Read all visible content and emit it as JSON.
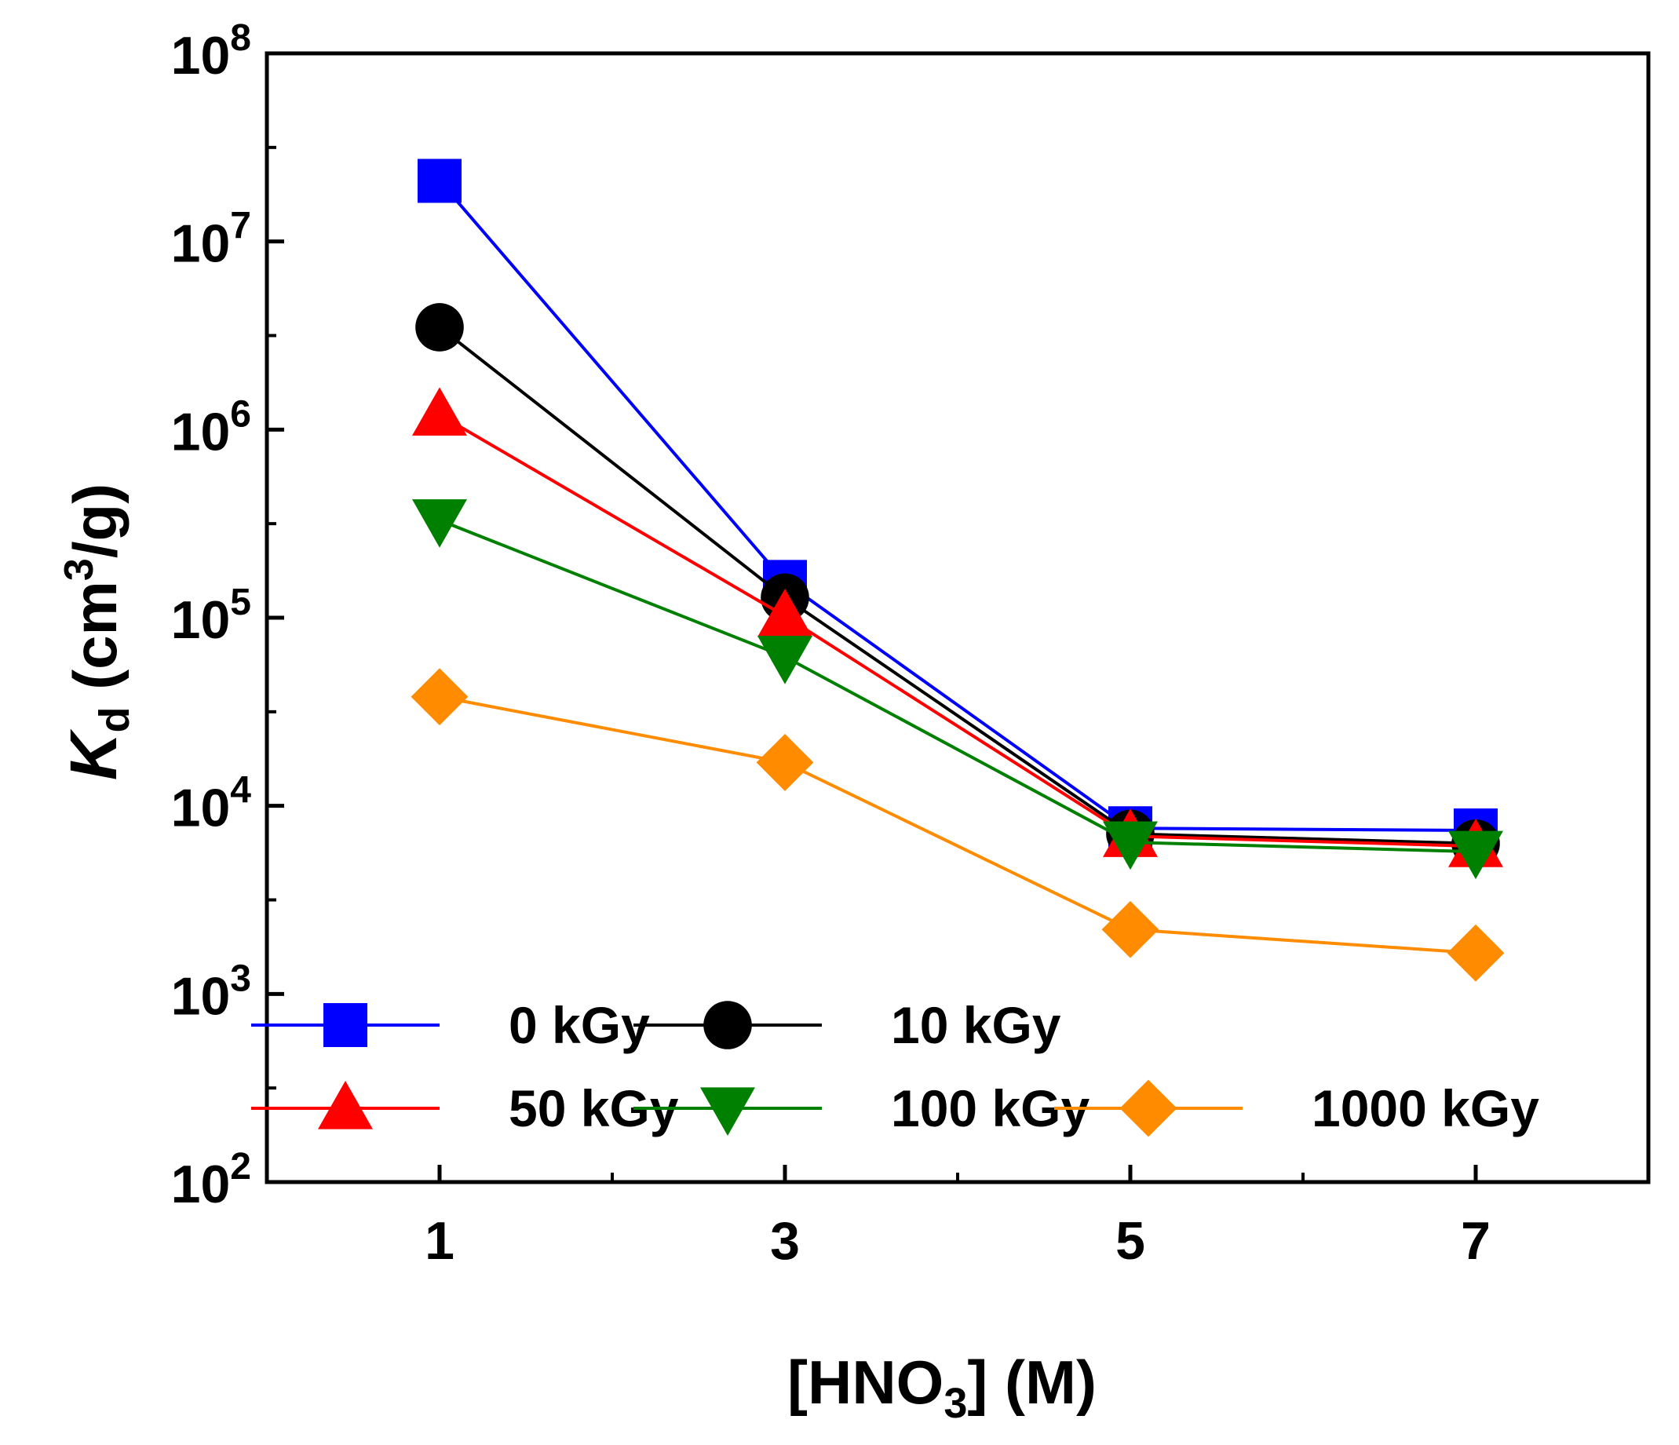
{
  "chart_data": {
    "type": "line",
    "y_scale": "log",
    "xlabel": {
      "main": "[HNO",
      "sub": "3",
      "tail": "] (M)"
    },
    "ylabel": {
      "main": "K",
      "sub": "d",
      "unit_open": " (cm",
      "sup": "3",
      "unit_close": "/g)"
    },
    "xlim": [
      0,
      8
    ],
    "ylim": [
      100,
      100000000
    ],
    "x_ticks": [
      1,
      3,
      5,
      7
    ],
    "x_tick_labels": [
      "1",
      "3",
      "5",
      "7"
    ],
    "y_ticks": [
      {
        "value": 100,
        "base": "10",
        "exp": "2"
      },
      {
        "value": 1000,
        "base": "10",
        "exp": "3"
      },
      {
        "value": 10000,
        "base": "10",
        "exp": "4"
      },
      {
        "value": 100000,
        "base": "10",
        "exp": "5"
      },
      {
        "value": 1000000,
        "base": "10",
        "exp": "6"
      },
      {
        "value": 10000000,
        "base": "10",
        "exp": "7"
      },
      {
        "value": 100000000,
        "base": "10",
        "exp": "8"
      }
    ],
    "x": [
      1,
      3,
      5,
      7
    ],
    "series": [
      {
        "name": "0 kGy",
        "color": "#0000ff",
        "marker": "square",
        "values": [
          21000000,
          155000,
          7600,
          7400
        ]
      },
      {
        "name": "10 kGy",
        "color": "#000000",
        "marker": "circle",
        "values": [
          3500000,
          128000,
          7100,
          6300
        ]
      },
      {
        "name": "50 kGy",
        "color": "#ff0000",
        "marker": "triangle-up",
        "values": [
          1200000,
          102000,
          6900,
          6100
        ]
      },
      {
        "name": "100 kGy",
        "color": "#008000",
        "marker": "triangle-down",
        "values": [
          330000,
          62000,
          6400,
          5700
        ]
      },
      {
        "name": "1000 kGy",
        "color": "#ff8c00",
        "marker": "diamond",
        "values": [
          38000,
          17000,
          2200,
          1650
        ]
      }
    ],
    "legend": {
      "placement": "bottom-left",
      "columns": 3
    }
  }
}
